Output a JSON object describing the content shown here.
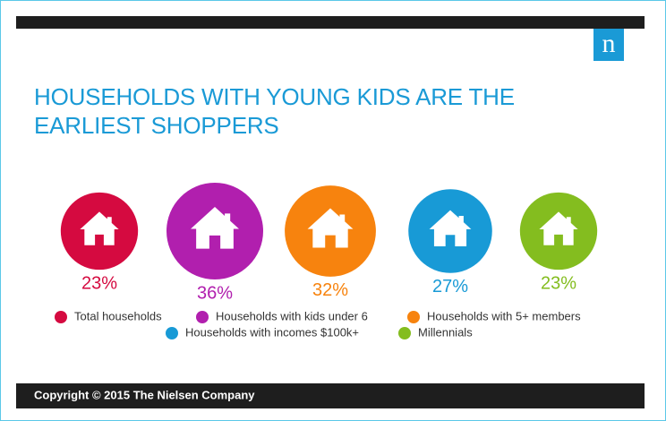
{
  "chart_data": {
    "type": "bubble",
    "logo": "n",
    "title": "HOUSEHOLDS WITH YOUNG KIDS ARE THE EARLIEST SHOPPERS",
    "categories": [
      "Total households",
      "Households with kids under 6",
      "Households with 5+ members",
      "Households with incomes $100k+",
      "Millennials"
    ],
    "values": [
      23,
      36,
      32,
      27,
      23
    ],
    "value_labels": [
      "23%",
      "36%",
      "32%",
      "27%",
      "23%"
    ],
    "colors": [
      "#d50a40",
      "#b11fae",
      "#f7830e",
      "#189ad6",
      "#84bd1f"
    ],
    "source": "Copyright © 2015 The Nielsen Company"
  }
}
